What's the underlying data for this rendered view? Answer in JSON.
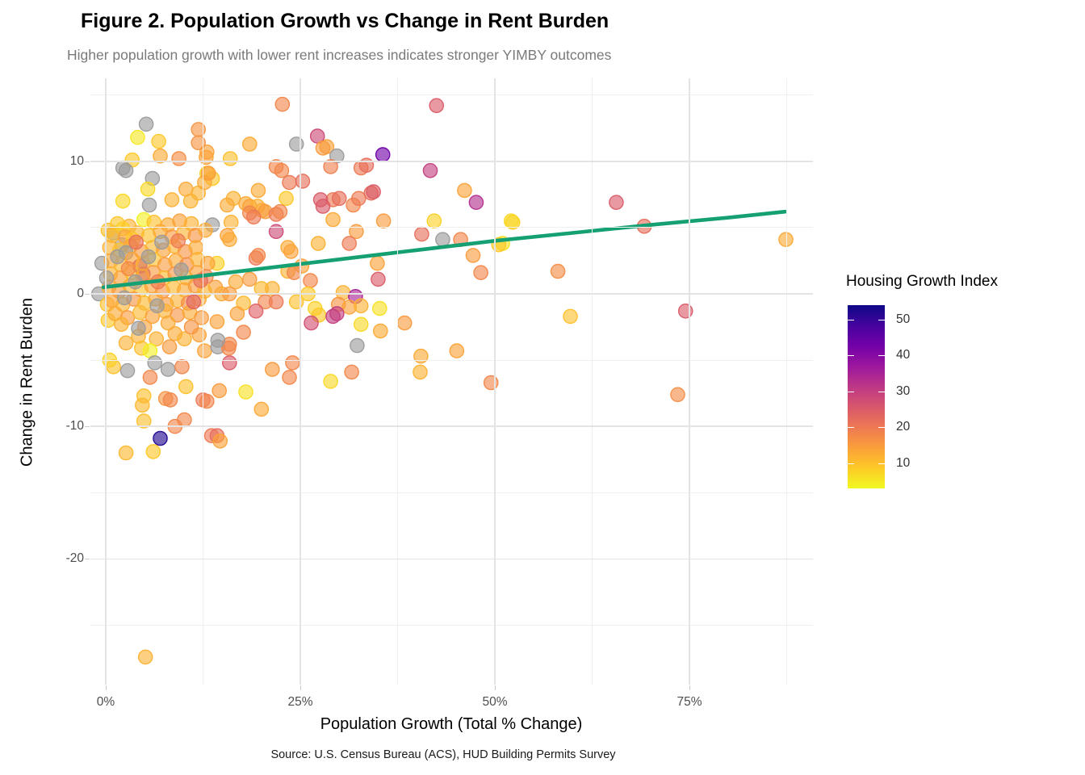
{
  "header": {
    "title": "Figure 2. Population Growth vs Change in Rent Burden",
    "subtitle": "Higher population growth with lower rent increases indicates stronger YIMBY outcomes"
  },
  "caption": "Source: U.S. Census Bureau (ACS), HUD Building Permits Survey",
  "legend": {
    "title": "Housing Growth Index",
    "ticks": [
      {
        "v": 50,
        "label": "50"
      },
      {
        "v": 40,
        "label": "40"
      },
      {
        "v": 30,
        "label": "30"
      },
      {
        "v": 20,
        "label": "20"
      },
      {
        "v": 10,
        "label": "10"
      }
    ],
    "domain": [
      3,
      54
    ]
  },
  "colors": {
    "trend_line": "#14A073",
    "na_point": "#9b9b9b",
    "grid_major": "#e4e4e4",
    "grid_minor": "#f0f0f0",
    "plasma_palette": [
      "#0d0887",
      "#46039f",
      "#7201a8",
      "#9c179e",
      "#bd3786",
      "#d8576b",
      "#ed7953",
      "#fb9f3a",
      "#fdca26",
      "#f0f921"
    ]
  },
  "chart_data": {
    "type": "scatter",
    "title": "Figure 2. Population Growth vs Change in Rent Burden",
    "xlabel": "Population Growth (Total % Change)",
    "ylabel": "Change in Rent Burden",
    "color_label": "Housing Growth Index",
    "xlim": [
      -2,
      91
    ],
    "ylim": [
      -29.4,
      16.3
    ],
    "x_ticks": [
      {
        "v": 0,
        "label": "0%"
      },
      {
        "v": 25,
        "label": "25%"
      },
      {
        "v": 50,
        "label": "50%"
      },
      {
        "v": 75,
        "label": "75%"
      }
    ],
    "y_ticks": [
      {
        "v": 10,
        "label": "10"
      },
      {
        "v": 0,
        "label": "0"
      },
      {
        "v": -10,
        "label": "-10"
      },
      {
        "v": -20,
        "label": "-20"
      }
    ],
    "x_minor": [
      12.5,
      37.5,
      62.5,
      87.5
    ],
    "y_minor": [
      15,
      5,
      -5,
      -15,
      -25
    ],
    "grid": true,
    "legend_position": "right",
    "trend": [
      [
        -0.3,
        0.5
      ],
      [
        10,
        1.2
      ],
      [
        20,
        1.9
      ],
      [
        30,
        2.6
      ],
      [
        40,
        3.3
      ],
      [
        50,
        4.0
      ],
      [
        60,
        4.6
      ],
      [
        70,
        5.2
      ],
      [
        80,
        5.75
      ],
      [
        87.3,
        6.2
      ]
    ],
    "points": [
      [
        65.6,
        6.9,
        25
      ],
      [
        69.2,
        5.1,
        22
      ],
      [
        52.3,
        5.4,
        8
      ],
      [
        51,
        3.8,
        6
      ],
      [
        87.4,
        4.1,
        13
      ],
      [
        58.1,
        1.7,
        17
      ],
      [
        59.7,
        -1.7,
        10
      ],
      [
        74.5,
        -1.3,
        25
      ],
      [
        73.5,
        -7.6,
        17
      ],
      [
        42.5,
        14.2,
        25
      ],
      [
        28.4,
        11.1,
        14
      ],
      [
        29.7,
        10.4,
        null
      ],
      [
        35.6,
        10.5,
        43
      ],
      [
        28.9,
        9.6,
        19
      ],
      [
        32.8,
        9.5,
        20
      ],
      [
        33.5,
        9.7,
        22
      ],
      [
        41.7,
        9.3,
        30
      ],
      [
        29.2,
        7.1,
        20
      ],
      [
        30,
        7.2,
        22
      ],
      [
        31.8,
        6.7,
        18
      ],
      [
        32.5,
        7.2,
        20
      ],
      [
        34.1,
        7.6,
        22
      ],
      [
        34.4,
        7.7,
        25
      ],
      [
        46.1,
        7.8,
        14
      ],
      [
        47.6,
        6.9,
        33
      ],
      [
        29.2,
        5.6,
        13
      ],
      [
        35.7,
        5.5,
        15
      ],
      [
        42.2,
        5.5,
        8
      ],
      [
        52.1,
        5.5,
        7
      ],
      [
        32.2,
        4.7,
        15
      ],
      [
        40.6,
        4.5,
        22
      ],
      [
        43.3,
        4.1,
        null
      ],
      [
        45.6,
        4.1,
        18
      ],
      [
        31.3,
        3.8,
        20
      ],
      [
        50.5,
        3.7,
        9
      ],
      [
        47.2,
        2.9,
        15
      ],
      [
        34.9,
        2.3,
        14
      ],
      [
        48.2,
        1.6,
        18
      ],
      [
        35,
        1.1,
        25
      ],
      [
        30.5,
        0.1,
        12
      ],
      [
        32.1,
        -0.2,
        35
      ],
      [
        29.9,
        -0.8,
        16
      ],
      [
        31.3,
        -1,
        14
      ],
      [
        32.8,
        -0.9,
        12
      ],
      [
        29.7,
        -1.5,
        30
      ],
      [
        35.2,
        -1.1,
        6
      ],
      [
        32.8,
        -2.3,
        7
      ],
      [
        38.4,
        -2.2,
        15
      ],
      [
        35.3,
        -2.8,
        13
      ],
      [
        32.3,
        -3.9,
        null
      ],
      [
        45.1,
        -4.3,
        14
      ],
      [
        40.5,
        -4.7,
        13
      ],
      [
        40.4,
        -5.9,
        12
      ],
      [
        31.6,
        -5.9,
        18
      ],
      [
        28.9,
        -6.6,
        7
      ],
      [
        49.5,
        -6.7,
        18
      ],
      [
        22.7,
        14.3,
        18
      ],
      [
        27.2,
        11.9,
        28
      ],
      [
        24.5,
        11.3,
        null
      ],
      [
        18.5,
        11.3,
        13
      ],
      [
        27.9,
        11,
        15
      ],
      [
        16,
        10.2,
        10
      ],
      [
        13,
        10.7,
        14
      ],
      [
        13,
        9.1,
        8
      ],
      [
        21.9,
        9.6,
        18
      ],
      [
        22.6,
        9.3,
        18
      ],
      [
        13.7,
        8.7,
        9
      ],
      [
        23.6,
        8.4,
        20
      ],
      [
        25.3,
        8.5,
        22
      ],
      [
        19.6,
        7.8,
        13
      ],
      [
        27.6,
        7.1,
        25
      ],
      [
        27.9,
        6.6,
        25
      ],
      [
        16.4,
        7.2,
        12
      ],
      [
        18,
        6.8,
        13
      ],
      [
        18.5,
        6.6,
        14
      ],
      [
        19.5,
        6.6,
        12
      ],
      [
        20.1,
        6.3,
        13
      ],
      [
        20.5,
        6.2,
        15
      ],
      [
        23.2,
        7.2,
        9
      ],
      [
        15.6,
        6.7,
        13
      ],
      [
        18.5,
        6.1,
        18
      ],
      [
        19,
        5.8,
        20
      ],
      [
        13.7,
        5.2,
        null
      ],
      [
        16.1,
        5.4,
        12
      ],
      [
        21.9,
        6,
        20
      ],
      [
        22.4,
        6.2,
        18
      ],
      [
        21.9,
        4.7,
        28
      ],
      [
        15.6,
        4.4,
        14
      ],
      [
        15.9,
        4.1,
        13
      ],
      [
        19.3,
        2.7,
        20
      ],
      [
        19.6,
        2.9,
        18
      ],
      [
        23.4,
        3.5,
        13
      ],
      [
        23.8,
        3.2,
        14
      ],
      [
        27.3,
        3.8,
        12
      ],
      [
        14.3,
        2.3,
        8
      ],
      [
        25.2,
        2.1,
        14
      ],
      [
        23.4,
        1.7,
        12
      ],
      [
        5.2,
        12.8,
        null
      ],
      [
        4.1,
        11.8,
        5
      ],
      [
        11.9,
        12.4,
        16
      ],
      [
        11.9,
        11.4,
        16
      ],
      [
        6.8,
        11.5,
        9
      ],
      [
        7,
        10.4,
        13
      ],
      [
        9.4,
        10.2,
        17
      ],
      [
        3.4,
        10.1,
        9
      ],
      [
        2.2,
        9.5,
        null
      ],
      [
        2.6,
        9.3,
        null
      ],
      [
        12.9,
        10.3,
        14
      ],
      [
        6,
        8.7,
        null
      ],
      [
        5.4,
        7.9,
        7
      ],
      [
        10.3,
        7.9,
        13
      ],
      [
        11.9,
        7.6,
        12
      ],
      [
        12.7,
        8.4,
        13
      ],
      [
        8.5,
        7.1,
        12
      ],
      [
        10.9,
        7,
        12
      ],
      [
        2.2,
        7,
        7
      ],
      [
        5.6,
        6.7,
        null
      ],
      [
        13.2,
        9.1,
        15
      ],
      [
        2.6,
        -3.7,
        12
      ],
      [
        4.2,
        -3.2,
        12
      ],
      [
        4.6,
        -4.1,
        10
      ],
      [
        6.5,
        -3.4,
        12
      ],
      [
        8.9,
        -3,
        13
      ],
      [
        10.1,
        -3.4,
        12
      ],
      [
        12,
        -3.1,
        14
      ],
      [
        12.7,
        -4.3,
        14
      ],
      [
        5.7,
        -4.3,
        4
      ],
      [
        8.2,
        -4,
        15
      ],
      [
        2.8,
        -5.8,
        null
      ],
      [
        1,
        -5.5,
        10
      ],
      [
        6.3,
        -5.2,
        null
      ],
      [
        8,
        -5.7,
        null
      ],
      [
        5.7,
        -6.3,
        18
      ],
      [
        9.8,
        -5.5,
        18
      ],
      [
        10.3,
        -7,
        10
      ],
      [
        4.9,
        -7.7,
        10
      ],
      [
        4.7,
        -8.4,
        11
      ],
      [
        7.7,
        -7.9,
        16
      ],
      [
        8.3,
        -8,
        18
      ],
      [
        12.5,
        -8,
        20
      ],
      [
        4.9,
        -9.6,
        10
      ],
      [
        10.1,
        -9.5,
        18
      ],
      [
        8.9,
        -10,
        18
      ],
      [
        7,
        -10.9,
        52
      ],
      [
        6.1,
        -11.9,
        9
      ],
      [
        2.6,
        -12,
        11
      ],
      [
        13.6,
        -10.7,
        20
      ],
      [
        14.4,
        -4,
        null
      ],
      [
        15.9,
        -5.2,
        25
      ],
      [
        15.8,
        -4.1,
        18
      ],
      [
        21.4,
        -5.7,
        15
      ],
      [
        24,
        -5.2,
        18
      ],
      [
        23.6,
        -6.3,
        18
      ],
      [
        14.6,
        -7.3,
        15
      ],
      [
        18,
        -7.4,
        6
      ],
      [
        13,
        -8.1,
        18
      ],
      [
        20,
        -8.7,
        13
      ],
      [
        14.3,
        -10.7,
        22
      ],
      [
        14.7,
        -11.1,
        14
      ],
      [
        20,
        0.4,
        11
      ],
      [
        21.4,
        0.4,
        12
      ],
      [
        16.7,
        0.9,
        13
      ],
      [
        18.5,
        1.1,
        15
      ],
      [
        24.2,
        1.6,
        18
      ],
      [
        26.3,
        1,
        18
      ],
      [
        14.1,
        0.5,
        14
      ],
      [
        14.9,
        0,
        13
      ],
      [
        15.9,
        0,
        15
      ],
      [
        20.5,
        -0.6,
        18
      ],
      [
        21.9,
        -0.6,
        20
      ],
      [
        19.3,
        -1.3,
        24
      ],
      [
        17.7,
        -0.7,
        11
      ],
      [
        16.9,
        -1.5,
        14
      ],
      [
        24.5,
        -0.6,
        10
      ],
      [
        26,
        0,
        9
      ],
      [
        26.9,
        -1.1,
        8
      ],
      [
        27.4,
        -1.6,
        9
      ],
      [
        26.4,
        -2.2,
        27
      ],
      [
        29.2,
        -1.7,
        30
      ],
      [
        14.3,
        -2.1,
        14
      ],
      [
        17.7,
        -2.9,
        18
      ],
      [
        15.9,
        -3.8,
        18
      ],
      [
        14.4,
        -3.5,
        null
      ],
      [
        5.1,
        -27.4,
        12
      ],
      [
        4.4,
        2.1,
        36
      ],
      [
        4.8,
        1.5,
        33
      ],
      [
        4.9,
        5.6,
        4
      ],
      [
        -0.9,
        0,
        null
      ],
      [
        -0.5,
        2.3,
        null
      ],
      [
        1,
        4.6,
        null
      ],
      [
        2.1,
        3.7,
        null
      ],
      [
        0.3,
        4.8,
        10
      ],
      [
        0.2,
        -0.8,
        10
      ],
      [
        0.3,
        -2,
        9
      ],
      [
        0.5,
        -5,
        8
      ],
      [
        1.5,
        5.3,
        9
      ],
      [
        3,
        5.1,
        12
      ],
      [
        6.2,
        5.4,
        10
      ],
      [
        8,
        5.2,
        13
      ],
      [
        9.5,
        5.5,
        14
      ],
      [
        11,
        5.3,
        12
      ],
      [
        2.2,
        4.9,
        8
      ],
      [
        0.8,
        4.4,
        11
      ],
      [
        2.5,
        4.3,
        14
      ],
      [
        4,
        4.6,
        12
      ],
      [
        5.5,
        4.4,
        10
      ],
      [
        7,
        4.7,
        13
      ],
      [
        8.5,
        4.3,
        15
      ],
      [
        10,
        4.6,
        12
      ],
      [
        11.5,
        4.4,
        16
      ],
      [
        12.8,
        4.8,
        13
      ],
      [
        3.5,
        4.1,
        9
      ],
      [
        0.5,
        3.5,
        12
      ],
      [
        1.8,
        3.3,
        10
      ],
      [
        3.2,
        3.6,
        13
      ],
      [
        4.6,
        3.2,
        15
      ],
      [
        6,
        3.5,
        11
      ],
      [
        7.4,
        3.3,
        14
      ],
      [
        8.8,
        3.6,
        12
      ],
      [
        10.2,
        3.2,
        16
      ],
      [
        11.6,
        3.5,
        13
      ],
      [
        2.6,
        3.1,
        null
      ],
      [
        0.7,
        2.5,
        13
      ],
      [
        2,
        2.2,
        11
      ],
      [
        3.4,
        2.6,
        14
      ],
      [
        4.8,
        2.3,
        12
      ],
      [
        6.2,
        2.6,
        10
      ],
      [
        7.6,
        2.2,
        15
      ],
      [
        9,
        2.5,
        13
      ],
      [
        10.4,
        2.2,
        17
      ],
      [
        11.8,
        2.6,
        12
      ],
      [
        13.1,
        2.3,
        14
      ],
      [
        5.5,
        2.8,
        null
      ],
      [
        0.6,
        1.5,
        12
      ],
      [
        1.9,
        1.2,
        14
      ],
      [
        3.3,
        1.6,
        10
      ],
      [
        4.7,
        1.3,
        13
      ],
      [
        6.1,
        1.6,
        15
      ],
      [
        7.5,
        1.2,
        11
      ],
      [
        8.9,
        1.5,
        16
      ],
      [
        10.3,
        1.2,
        12
      ],
      [
        11.7,
        1.6,
        14
      ],
      [
        12.9,
        1.3,
        18
      ],
      [
        0.4,
        0.5,
        13
      ],
      [
        1.7,
        0.2,
        15
      ],
      [
        3.1,
        0.6,
        12
      ],
      [
        4.5,
        0.3,
        10
      ],
      [
        5.9,
        0.6,
        14
      ],
      [
        7.3,
        0.2,
        16
      ],
      [
        8.7,
        0.5,
        11
      ],
      [
        10.1,
        0.3,
        13
      ],
      [
        11.5,
        0.6,
        15
      ],
      [
        12.7,
        0.2,
        12
      ],
      [
        0.8,
        -0.5,
        14
      ],
      [
        2.2,
        -0.8,
        12
      ],
      [
        3.6,
        -0.4,
        16
      ],
      [
        5,
        -0.7,
        11
      ],
      [
        6.4,
        -0.4,
        13
      ],
      [
        7.8,
        -0.8,
        15
      ],
      [
        9.2,
        -0.5,
        12
      ],
      [
        10.6,
        -0.7,
        17
      ],
      [
        12,
        -0.4,
        13
      ],
      [
        1.2,
        -1.5,
        13
      ],
      [
        2.8,
        -1.8,
        15
      ],
      [
        4.4,
        -1.4,
        11
      ],
      [
        6,
        -1.7,
        14
      ],
      [
        7.6,
        -1.3,
        12
      ],
      [
        9.2,
        -1.6,
        16
      ],
      [
        10.8,
        -1.4,
        13
      ],
      [
        12.3,
        -1.8,
        15
      ],
      [
        2,
        -2.3,
        12
      ],
      [
        5,
        -2.5,
        14
      ],
      [
        8,
        -2.2,
        13
      ],
      [
        11,
        -2.5,
        16
      ],
      [
        1.5,
        2.8,
        null
      ],
      [
        3.8,
        0.9,
        null
      ],
      [
        6.6,
        -0.9,
        null
      ],
      [
        2.4,
        -0.3,
        null
      ],
      [
        9.7,
        1.8,
        null
      ],
      [
        0.1,
        1.2,
        null
      ],
      [
        4.2,
        -2.6,
        null
      ],
      [
        7.2,
        3.9,
        null
      ],
      [
        3.9,
        3.9,
        22
      ],
      [
        9.3,
        4,
        20
      ],
      [
        12.2,
        1,
        22
      ],
      [
        6.7,
        0.9,
        20
      ],
      [
        11.3,
        -0.6,
        24
      ],
      [
        2.9,
        1.9,
        18
      ]
    ]
  }
}
